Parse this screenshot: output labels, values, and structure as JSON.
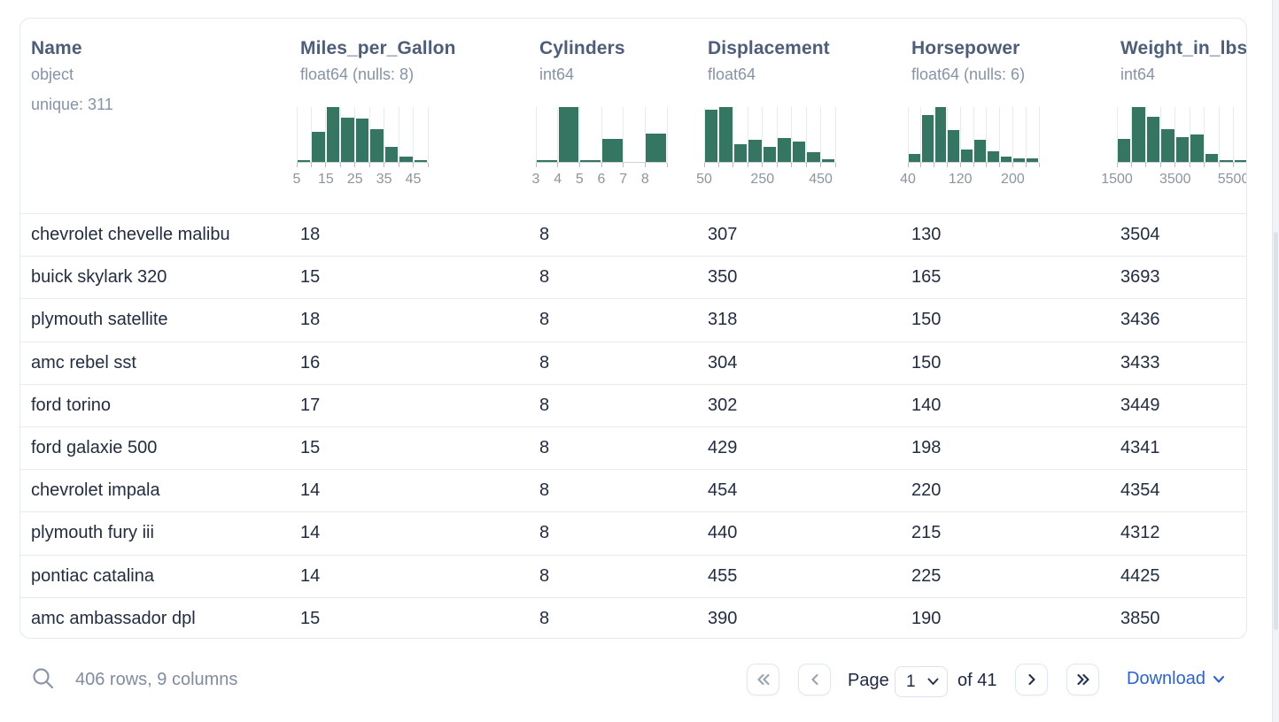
{
  "table": {
    "columns": [
      {
        "name": "Name",
        "dtype": "object",
        "meta": "unique: 311",
        "histogram": null
      },
      {
        "name": "Miles_per_Gallon",
        "dtype": "float64 (nulls: 8)",
        "meta": "",
        "histogram": {
          "bins": [
            3,
            55,
            100,
            80,
            79,
            60,
            28,
            9,
            3
          ],
          "tick_indices": [
            0,
            2,
            4,
            6,
            8
          ],
          "tick_labels": [
            "5",
            "15",
            "25",
            "35",
            "45"
          ]
        }
      },
      {
        "name": "Cylinders",
        "dtype": "int64",
        "meta": "",
        "histogram": {
          "bins": [
            3,
            100,
            3,
            42,
            0,
            52
          ],
          "tick_indices": [
            0,
            1,
            2,
            3,
            4,
            5
          ],
          "tick_labels": [
            "3",
            "4",
            "5",
            "6",
            "7",
            "8"
          ]
        }
      },
      {
        "name": "Displacement",
        "dtype": "float64",
        "meta": "",
        "histogram": {
          "bins": [
            95,
            100,
            33,
            40,
            28,
            43,
            37,
            18,
            5
          ],
          "tick_indices": [
            0,
            4,
            8
          ],
          "tick_labels": [
            "50",
            "250",
            "450"
          ]
        }
      },
      {
        "name": "Horsepower",
        "dtype": "float64 (nulls: 6)",
        "meta": "",
        "histogram": {
          "bins": [
            15,
            85,
            100,
            58,
            22,
            40,
            20,
            10,
            7,
            6
          ],
          "tick_indices": [
            0,
            4,
            8
          ],
          "tick_labels": [
            "40",
            "120",
            "200"
          ]
        }
      },
      {
        "name": "Weight_in_lbs",
        "dtype": "int64",
        "meta": "",
        "histogram": {
          "bins": [
            42,
            100,
            82,
            60,
            45,
            50,
            15,
            3,
            2
          ],
          "tick_indices": [
            0,
            4,
            8
          ],
          "tick_labels": [
            "1500",
            "3500",
            "5500"
          ]
        }
      }
    ],
    "rows": [
      [
        "chevrolet chevelle malibu",
        "18",
        "8",
        "307",
        "130",
        "3504"
      ],
      [
        "buick skylark 320",
        "15",
        "8",
        "350",
        "165",
        "3693"
      ],
      [
        "plymouth satellite",
        "18",
        "8",
        "318",
        "150",
        "3436"
      ],
      [
        "amc rebel sst",
        "16",
        "8",
        "304",
        "150",
        "3433"
      ],
      [
        "ford torino",
        "17",
        "8",
        "302",
        "140",
        "3449"
      ],
      [
        "ford galaxie 500",
        "15",
        "8",
        "429",
        "198",
        "4341"
      ],
      [
        "chevrolet impala",
        "14",
        "8",
        "454",
        "220",
        "4354"
      ],
      [
        "plymouth fury iii",
        "14",
        "8",
        "440",
        "215",
        "4312"
      ],
      [
        "pontiac catalina",
        "14",
        "8",
        "455",
        "225",
        "4425"
      ],
      [
        "amc ambassador dpl",
        "15",
        "8",
        "390",
        "190",
        "3850"
      ]
    ]
  },
  "chart_data": [
    {
      "type": "bar",
      "title": "Miles_per_Gallon histogram",
      "bin_edges": [
        5,
        10,
        15,
        20,
        25,
        30,
        35,
        40,
        45,
        50
      ],
      "values": [
        3,
        55,
        100,
        80,
        79,
        60,
        28,
        9,
        3
      ],
      "xlabel": "Miles_per_Gallon"
    },
    {
      "type": "bar",
      "title": "Cylinders histogram",
      "bin_edges": [
        3,
        4,
        5,
        6,
        7,
        8,
        9
      ],
      "values": [
        3,
        100,
        3,
        42,
        0,
        52
      ],
      "xlabel": "Cylinders"
    },
    {
      "type": "bar",
      "title": "Displacement histogram",
      "bin_edges": [
        50,
        100,
        150,
        200,
        250,
        300,
        350,
        400,
        450,
        500
      ],
      "values": [
        95,
        100,
        33,
        40,
        28,
        43,
        37,
        18,
        5
      ],
      "xlabel": "Displacement"
    },
    {
      "type": "bar",
      "title": "Horsepower histogram",
      "bin_edges": [
        40,
        60,
        80,
        100,
        120,
        140,
        160,
        180,
        200,
        220,
        240
      ],
      "values": [
        15,
        85,
        100,
        58,
        22,
        40,
        20,
        10,
        7,
        6
      ],
      "xlabel": "Horsepower"
    },
    {
      "type": "bar",
      "title": "Weight_in_lbs histogram",
      "bin_edges": [
        1500,
        2000,
        2500,
        3000,
        3500,
        4000,
        4500,
        5000,
        5500,
        6000
      ],
      "values": [
        42,
        100,
        82,
        60,
        45,
        50,
        15,
        3,
        2
      ],
      "xlabel": "Weight_in_lbs"
    }
  ],
  "footer": {
    "status": "406 rows, 9 columns",
    "pagination": {
      "page_label": "Page",
      "page_value": "1",
      "of_label": "of 41"
    },
    "download_label": "Download"
  },
  "colors": {
    "histogram_bar": "#357663",
    "download_link": "#2b62d9",
    "pagination_enabled": "#22304f",
    "pagination_disabled": "#98a2b3"
  }
}
